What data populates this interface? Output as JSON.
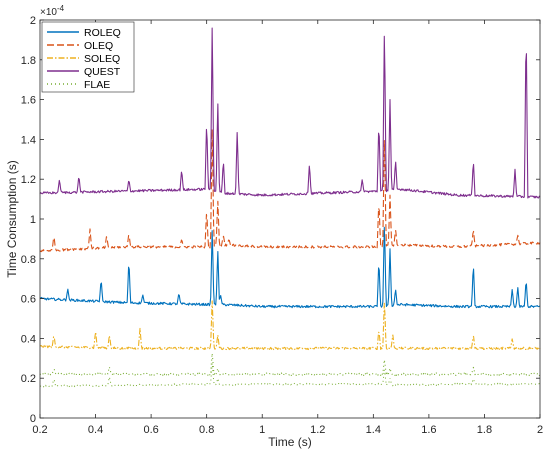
{
  "chart_data": {
    "type": "line",
    "xlabel": "Time (s)",
    "ylabel": "Time Consumption (s)",
    "y_multiplier_base": "×10",
    "y_multiplier_exp": "-4",
    "xlim": [
      0.2,
      2.0
    ],
    "ylim": [
      0,
      2
    ],
    "x_ticks": [
      "0.2",
      "0.4",
      "0.6",
      "0.8",
      "1",
      "1.2",
      "1.4",
      "1.6",
      "1.8",
      "2"
    ],
    "y_ticks": [
      "0",
      "0.2",
      "0.4",
      "0.6",
      "0.8",
      "1",
      "1.2",
      "1.4",
      "1.6",
      "1.8",
      "2"
    ],
    "legend_position": "top-left",
    "grid": false,
    "colors": {
      "ROLEQ": "#0072BD",
      "OLEQ": "#D95319",
      "SOLEQ": "#EDB120",
      "QUEST": "#7E2F8E",
      "FLAE": "#77AC30"
    },
    "series": [
      {
        "name": "ROLEQ",
        "style": "solid",
        "baseline": [
          [
            0.2,
            0.6
          ],
          [
            0.5,
            0.58
          ],
          [
            0.81,
            0.57
          ],
          [
            0.86,
            0.57
          ],
          [
            1.0,
            0.56
          ],
          [
            1.42,
            0.56
          ],
          [
            1.5,
            0.57
          ],
          [
            1.7,
            0.56
          ],
          [
            2.0,
            0.56
          ]
        ],
        "spikes": [
          [
            0.3,
            0.65
          ],
          [
            0.42,
            0.7
          ],
          [
            0.52,
            0.8
          ],
          [
            0.57,
            0.62
          ],
          [
            0.7,
            0.63
          ],
          [
            0.82,
            0.96
          ],
          [
            0.84,
            0.85
          ],
          [
            0.85,
            0.62
          ],
          [
            1.42,
            0.8
          ],
          [
            1.44,
            1.0
          ],
          [
            1.46,
            0.85
          ],
          [
            1.48,
            0.65
          ],
          [
            1.76,
            0.78
          ],
          [
            1.9,
            0.65
          ],
          [
            1.92,
            0.66
          ],
          [
            1.95,
            0.7
          ]
        ]
      },
      {
        "name": "OLEQ",
        "style": "dashed",
        "baseline": [
          [
            0.2,
            0.84
          ],
          [
            0.5,
            0.86
          ],
          [
            0.81,
            0.86
          ],
          [
            0.86,
            0.87
          ],
          [
            1.0,
            0.86
          ],
          [
            1.42,
            0.86
          ],
          [
            1.5,
            0.87
          ],
          [
            1.7,
            0.86
          ],
          [
            2.0,
            0.88
          ]
        ],
        "spikes": [
          [
            0.25,
            0.92
          ],
          [
            0.38,
            0.95
          ],
          [
            0.44,
            0.92
          ],
          [
            0.52,
            0.93
          ],
          [
            0.71,
            0.9
          ],
          [
            0.8,
            1.05
          ],
          [
            0.82,
            1.48
          ],
          [
            0.84,
            1.1
          ],
          [
            0.86,
            0.92
          ],
          [
            0.88,
            0.9
          ],
          [
            1.42,
            1.1
          ],
          [
            1.44,
            1.45
          ],
          [
            1.46,
            1.12
          ],
          [
            1.48,
            0.95
          ],
          [
            1.76,
            0.95
          ],
          [
            1.92,
            0.92
          ]
        ]
      },
      {
        "name": "SOLEQ",
        "style": "dashdot",
        "baseline": [
          [
            0.2,
            0.36
          ],
          [
            0.5,
            0.35
          ],
          [
            0.81,
            0.35
          ],
          [
            0.86,
            0.35
          ],
          [
            1.0,
            0.35
          ],
          [
            1.42,
            0.35
          ],
          [
            1.5,
            0.35
          ],
          [
            1.7,
            0.35
          ],
          [
            2.0,
            0.35
          ]
        ],
        "spikes": [
          [
            0.25,
            0.42
          ],
          [
            0.4,
            0.44
          ],
          [
            0.45,
            0.42
          ],
          [
            0.56,
            0.45
          ],
          [
            0.82,
            0.6
          ],
          [
            0.84,
            0.42
          ],
          [
            1.42,
            0.45
          ],
          [
            1.44,
            0.6
          ],
          [
            1.47,
            0.42
          ],
          [
            1.76,
            0.42
          ],
          [
            1.9,
            0.4
          ]
        ]
      },
      {
        "name": "QUEST",
        "style": "solid",
        "baseline": [
          [
            0.2,
            1.13
          ],
          [
            0.5,
            1.14
          ],
          [
            0.81,
            1.15
          ],
          [
            0.86,
            1.13
          ],
          [
            1.0,
            1.12
          ],
          [
            1.42,
            1.14
          ],
          [
            1.5,
            1.15
          ],
          [
            1.7,
            1.12
          ],
          [
            2.0,
            1.11
          ]
        ],
        "spikes": [
          [
            0.27,
            1.2
          ],
          [
            0.34,
            1.22
          ],
          [
            0.52,
            1.2
          ],
          [
            0.71,
            1.25
          ],
          [
            0.8,
            1.5
          ],
          [
            0.82,
            2.0
          ],
          [
            0.84,
            1.6
          ],
          [
            0.86,
            1.3
          ],
          [
            0.91,
            1.45
          ],
          [
            1.17,
            1.28
          ],
          [
            1.36,
            1.2
          ],
          [
            1.42,
            1.5
          ],
          [
            1.44,
            2.0
          ],
          [
            1.46,
            1.6
          ],
          [
            1.48,
            1.3
          ],
          [
            1.76,
            1.3
          ],
          [
            1.91,
            1.25
          ],
          [
            1.95,
            2.0
          ]
        ]
      },
      {
        "name": "FLAE",
        "style": "dotted",
        "baseline": [
          [
            0.2,
            0.22
          ],
          [
            0.5,
            0.22
          ],
          [
            0.81,
            0.22
          ],
          [
            0.86,
            0.22
          ],
          [
            1.0,
            0.22
          ],
          [
            1.42,
            0.22
          ],
          [
            1.5,
            0.22
          ],
          [
            1.7,
            0.22
          ],
          [
            2.0,
            0.22
          ]
        ],
        "spikes": [
          [
            0.25,
            0.25
          ],
          [
            0.45,
            0.26
          ],
          [
            0.82,
            0.33
          ],
          [
            0.84,
            0.25
          ],
          [
            1.44,
            0.3
          ],
          [
            1.46,
            0.25
          ],
          [
            1.76,
            0.26
          ]
        ]
      }
    ],
    "lower_band": {
      "name": "FLAE",
      "baseline": [
        [
          0.2,
          0.16
        ],
        [
          0.5,
          0.165
        ],
        [
          0.81,
          0.17
        ],
        [
          0.86,
          0.165
        ],
        [
          1.0,
          0.17
        ],
        [
          1.42,
          0.17
        ],
        [
          1.5,
          0.165
        ],
        [
          1.7,
          0.17
        ],
        [
          2.0,
          0.17
        ]
      ],
      "spikes": [
        [
          0.25,
          0.2
        ],
        [
          0.45,
          0.21
        ],
        [
          0.82,
          0.28
        ],
        [
          0.84,
          0.2
        ],
        [
          1.44,
          0.25
        ],
        [
          1.46,
          0.2
        ],
        [
          1.76,
          0.2
        ]
      ]
    }
  }
}
